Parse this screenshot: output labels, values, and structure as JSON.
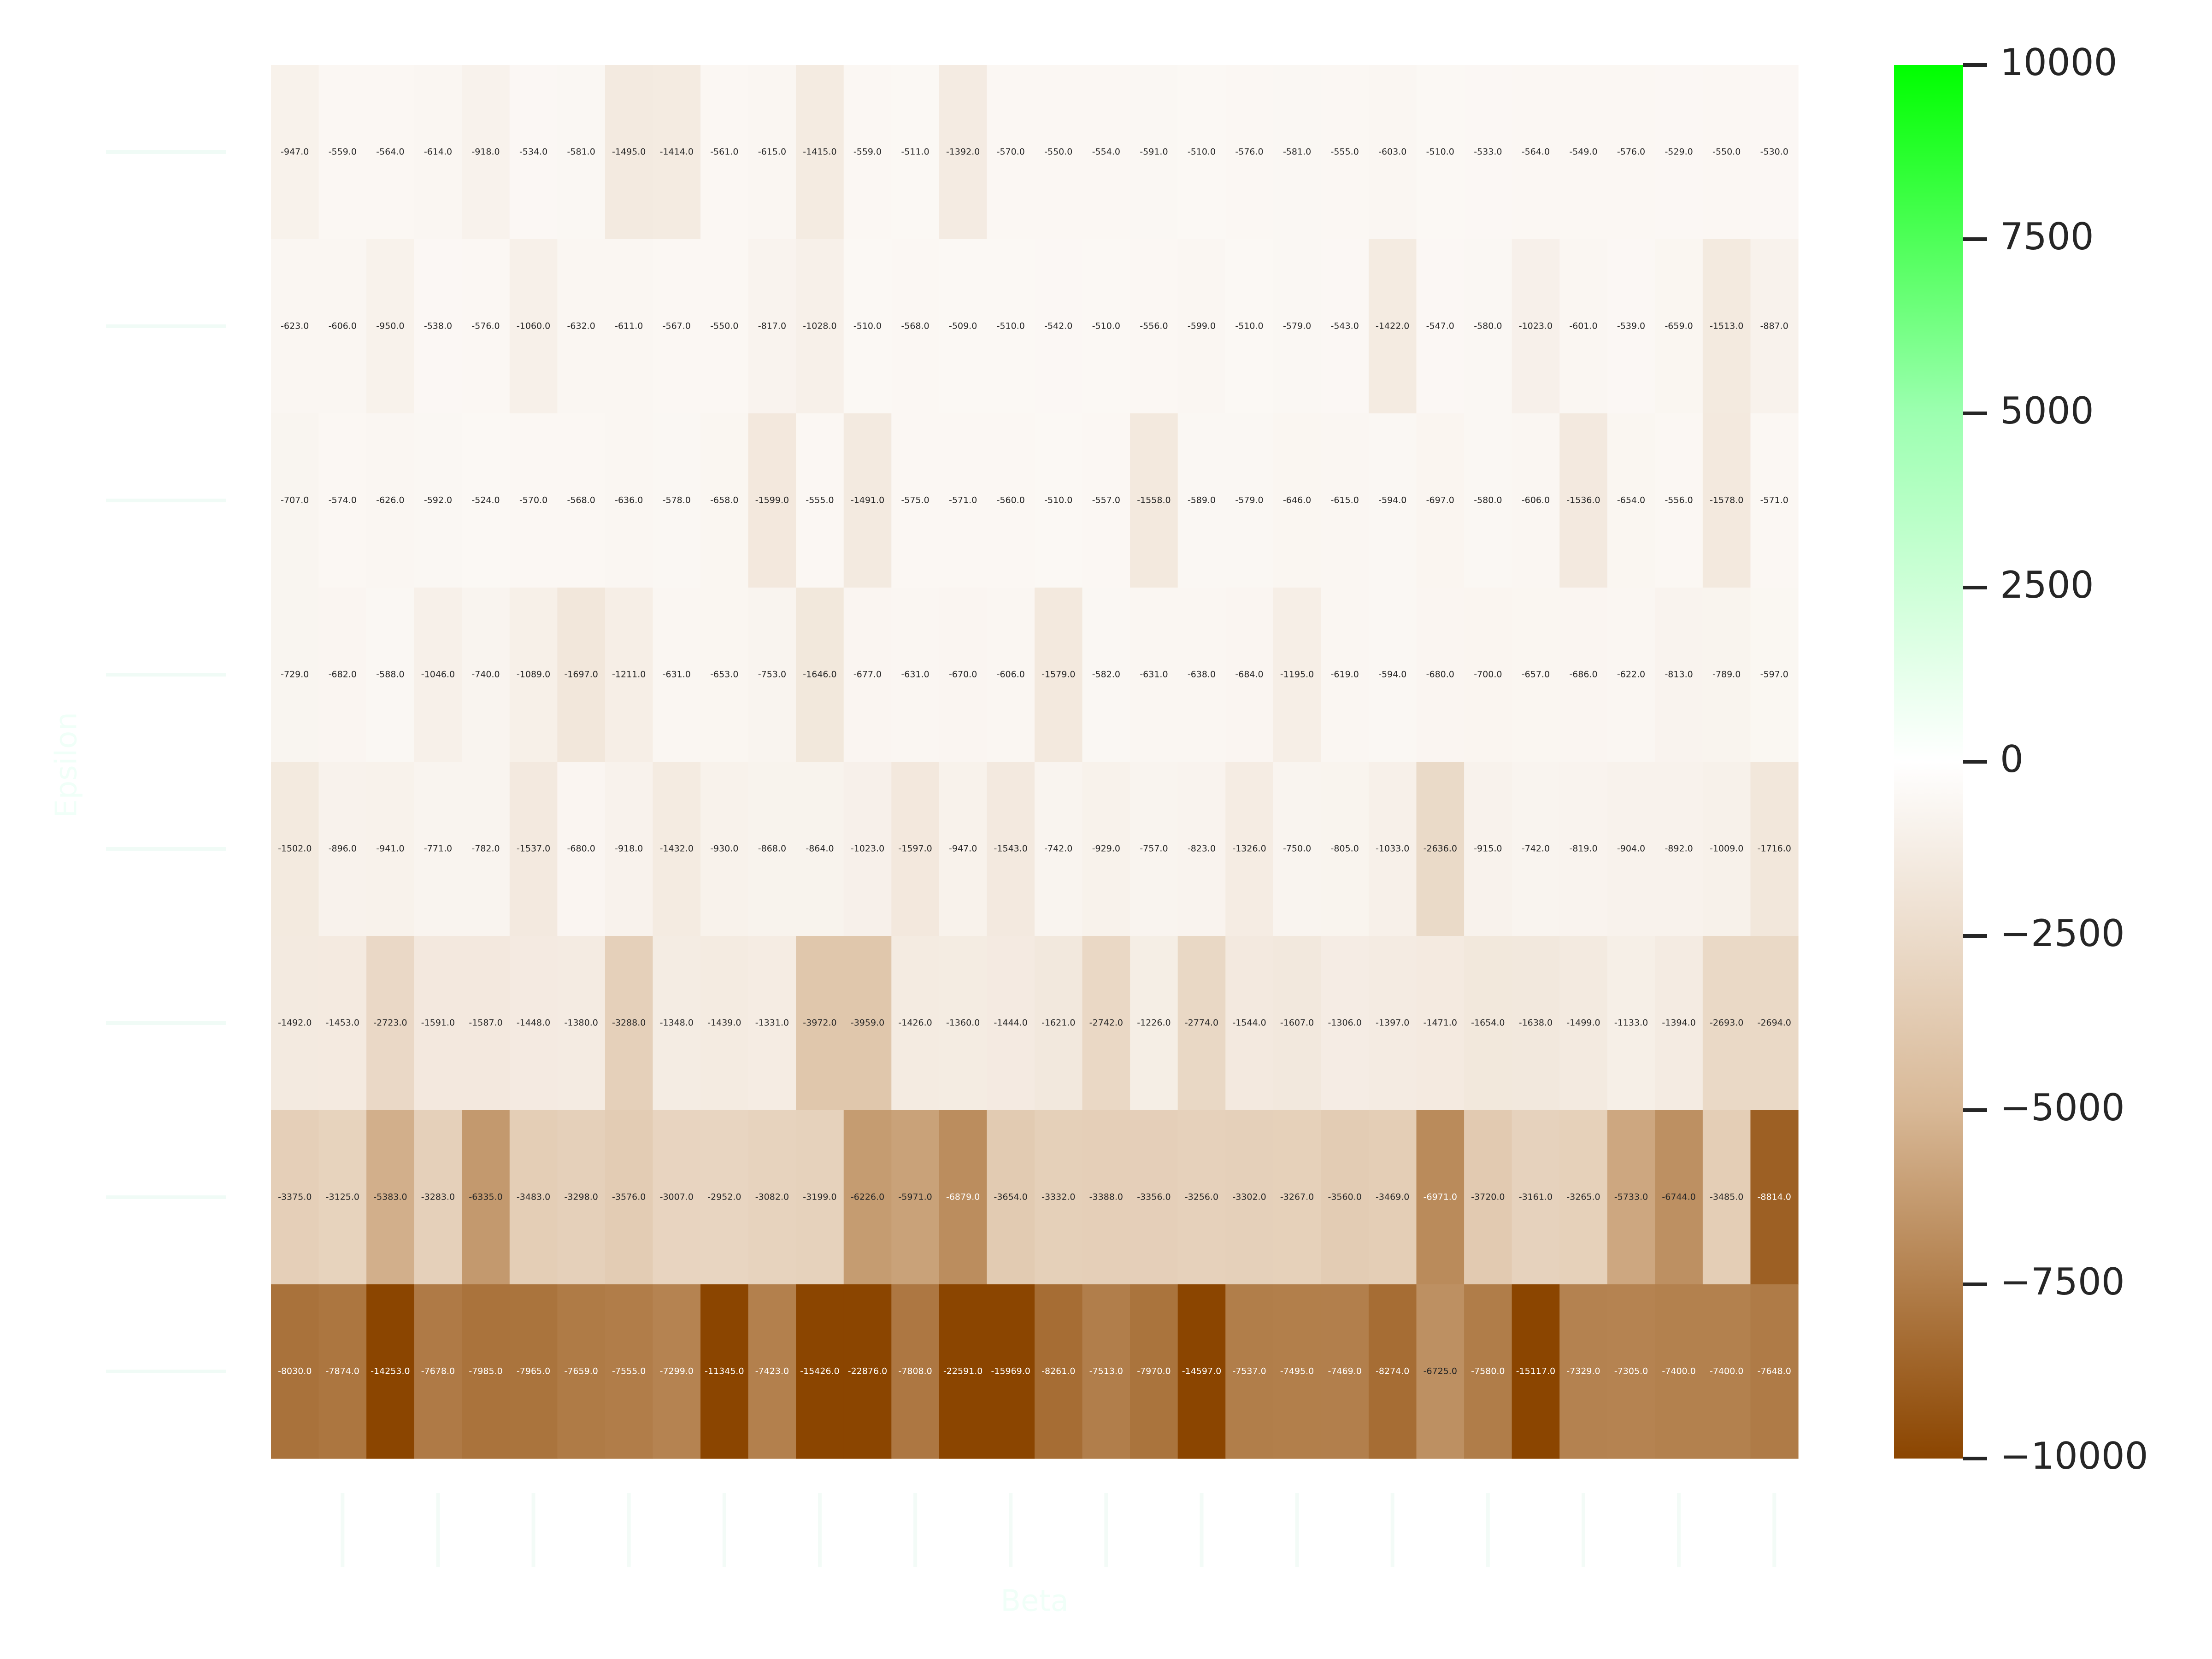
{
  "chart_data": {
    "type": "heatmap",
    "xlabel": "Beta",
    "ylabel": "Epsilon",
    "title": "",
    "colorbar": {
      "range": [
        -10000,
        10000
      ],
      "ticks": [
        10000,
        7500,
        5000,
        2500,
        0,
        -2500,
        -5000,
        -7500,
        -10000
      ],
      "tick_labels": [
        "10000",
        "7500",
        "5000",
        "2500",
        "0",
        "−2500",
        "−5000",
        "−7500",
        "−10000"
      ],
      "colors": {
        "max": "#00ff00",
        "mid_high": "#9cffb0",
        "center": "#ffffff",
        "mid_low": "#d8b896",
        "min": "#8b4500"
      }
    },
    "annotation_format": "{:.1f}",
    "values": [
      [
        -947,
        -559,
        -564,
        -614,
        -918,
        -534,
        -581,
        -1495,
        -1414,
        -561,
        -615,
        -1415,
        -559,
        -511,
        -1392,
        -570,
        -550,
        -554,
        -591,
        -510,
        -576,
        -581,
        -555,
        -603,
        -510,
        -533,
        -564,
        -549,
        -576,
        -529,
        -550,
        -530
      ],
      [
        -623,
        -606,
        -950,
        -538,
        -576,
        -1060,
        -632,
        -611,
        -567,
        -550,
        -817,
        -1028,
        -510,
        -568,
        -509,
        -510,
        -542,
        -510,
        -556,
        -599,
        -510,
        -579,
        -543,
        -1422,
        -547,
        -580,
        -1023,
        -601,
        -539,
        -659,
        -1513,
        -887
      ],
      [
        -707,
        -574,
        -626,
        -592,
        -524,
        -570,
        -568,
        -636,
        -578,
        -658,
        -1599,
        -555,
        -1491,
        -575,
        -571,
        -560,
        -510,
        -557,
        -1558,
        -589,
        -579,
        -646,
        -615,
        -594,
        -697,
        -580,
        -606,
        -1536,
        -654,
        -556,
        -1578,
        -571
      ],
      [
        -729,
        -682,
        -588,
        -1046,
        -740,
        -1089,
        -1697,
        -1211,
        -631,
        -653,
        -753,
        -1646,
        -677,
        -631,
        -670,
        -606,
        -1579,
        -582,
        -631,
        -638,
        -684,
        -1195,
        -619,
        -594,
        -680,
        -700,
        -657,
        -686,
        -622,
        -813,
        -789,
        -597
      ],
      [
        -1502,
        -896,
        -941,
        -771,
        -782,
        -1537,
        -680,
        -918,
        -1432,
        -930,
        -868,
        -864,
        -1023,
        -1597,
        -947,
        -1543,
        -742,
        -929,
        -757,
        -823,
        -1326,
        -750,
        -805,
        -1033,
        -2636,
        -915,
        -742,
        -819,
        -904,
        -892,
        -1009,
        -1716
      ],
      [
        -1492,
        -1453,
        -2723,
        -1591,
        -1587,
        -1448,
        -1380,
        -3288,
        -1348,
        -1439,
        -1331,
        -3972,
        -3959,
        -1426,
        -1360,
        -1444,
        -1621,
        -2742,
        -1226,
        -2774,
        -1544,
        -1607,
        -1306,
        -1397,
        -1471,
        -1654,
        -1638,
        -1499,
        -1133,
        -1394,
        -2693,
        -2694
      ],
      [
        -3375,
        -3125,
        -5383,
        -3283,
        -6335,
        -3483,
        -3298,
        -3576,
        -3007,
        -2952,
        -3082,
        -3199,
        -6226,
        -5971,
        -6879,
        -3654,
        -3332,
        -3388,
        -3356,
        -3256,
        -3302,
        -3267,
        -3560,
        -3469,
        -6971,
        -3720,
        -3161,
        -3265,
        -5733,
        -6744,
        -3485,
        -8814
      ],
      [
        -8030,
        -7874,
        -14253,
        -7678,
        -7985,
        -7965,
        -7659,
        -7555,
        -7299,
        -11345,
        -7423,
        -15426,
        -22876,
        -7808,
        -22591,
        -15969,
        -8261,
        -7513,
        -7970,
        -14597,
        -7537,
        -7495,
        -7469,
        -8274,
        -6725,
        -7580,
        -15117,
        -7329,
        -7305,
        -7400,
        -7400,
        -7648
      ]
    ]
  }
}
